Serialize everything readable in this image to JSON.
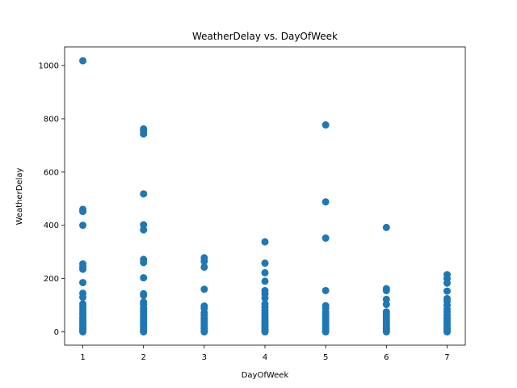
{
  "chart_data": {
    "type": "scatter",
    "title": "WeatherDelay vs. DayOfWeek",
    "xlabel": "DayOfWeek",
    "ylabel": "WeatherDelay",
    "xlim": [
      0.7,
      7.3
    ],
    "ylim": [
      -50,
      1070
    ],
    "xticks": [
      1,
      2,
      3,
      4,
      5,
      6,
      7
    ],
    "yticks": [
      0,
      200,
      400,
      600,
      800,
      1000
    ],
    "grid": false,
    "legend": "none",
    "marker_color": "#1f77b4",
    "series": [
      {
        "points": [
          {
            "x": 1,
            "y": 1018
          },
          {
            "x": 1,
            "y": 460
          },
          {
            "x": 1,
            "y": 452
          },
          {
            "x": 1,
            "y": 400
          },
          {
            "x": 1,
            "y": 255
          },
          {
            "x": 1,
            "y": 245
          },
          {
            "x": 1,
            "y": 235
          },
          {
            "x": 1,
            "y": 185
          },
          {
            "x": 1,
            "y": 145
          },
          {
            "x": 1,
            "y": 130
          },
          {
            "x": 1,
            "y": 105
          },
          {
            "x": 1,
            "y": 95
          },
          {
            "x": 1,
            "y": 85
          },
          {
            "x": 1,
            "y": 75
          },
          {
            "x": 1,
            "y": 65
          },
          {
            "x": 1,
            "y": 55
          },
          {
            "x": 1,
            "y": 48
          },
          {
            "x": 1,
            "y": 40
          },
          {
            "x": 1,
            "y": 33
          },
          {
            "x": 1,
            "y": 26
          },
          {
            "x": 1,
            "y": 19
          },
          {
            "x": 1,
            "y": 12
          },
          {
            "x": 1,
            "y": 6
          },
          {
            "x": 1,
            "y": 0
          },
          {
            "x": 2,
            "y": 762
          },
          {
            "x": 2,
            "y": 755
          },
          {
            "x": 2,
            "y": 743
          },
          {
            "x": 2,
            "y": 518
          },
          {
            "x": 2,
            "y": 402
          },
          {
            "x": 2,
            "y": 383
          },
          {
            "x": 2,
            "y": 272
          },
          {
            "x": 2,
            "y": 260
          },
          {
            "x": 2,
            "y": 203
          },
          {
            "x": 2,
            "y": 143
          },
          {
            "x": 2,
            "y": 137
          },
          {
            "x": 2,
            "y": 112
          },
          {
            "x": 2,
            "y": 103
          },
          {
            "x": 2,
            "y": 88
          },
          {
            "x": 2,
            "y": 78
          },
          {
            "x": 2,
            "y": 68
          },
          {
            "x": 2,
            "y": 58
          },
          {
            "x": 2,
            "y": 50
          },
          {
            "x": 2,
            "y": 42
          },
          {
            "x": 2,
            "y": 34
          },
          {
            "x": 2,
            "y": 26
          },
          {
            "x": 2,
            "y": 18
          },
          {
            "x": 2,
            "y": 10
          },
          {
            "x": 2,
            "y": 4
          },
          {
            "x": 2,
            "y": 0
          },
          {
            "x": 3,
            "y": 278
          },
          {
            "x": 3,
            "y": 265
          },
          {
            "x": 3,
            "y": 243
          },
          {
            "x": 3,
            "y": 160
          },
          {
            "x": 3,
            "y": 97
          },
          {
            "x": 3,
            "y": 88
          },
          {
            "x": 3,
            "y": 72
          },
          {
            "x": 3,
            "y": 62
          },
          {
            "x": 3,
            "y": 52
          },
          {
            "x": 3,
            "y": 44
          },
          {
            "x": 3,
            "y": 36
          },
          {
            "x": 3,
            "y": 28
          },
          {
            "x": 3,
            "y": 20
          },
          {
            "x": 3,
            "y": 12
          },
          {
            "x": 3,
            "y": 5
          },
          {
            "x": 3,
            "y": 0
          },
          {
            "x": 4,
            "y": 338
          },
          {
            "x": 4,
            "y": 258
          },
          {
            "x": 4,
            "y": 222
          },
          {
            "x": 4,
            "y": 190
          },
          {
            "x": 4,
            "y": 155
          },
          {
            "x": 4,
            "y": 142
          },
          {
            "x": 4,
            "y": 127
          },
          {
            "x": 4,
            "y": 105
          },
          {
            "x": 4,
            "y": 93
          },
          {
            "x": 4,
            "y": 80
          },
          {
            "x": 4,
            "y": 70
          },
          {
            "x": 4,
            "y": 60
          },
          {
            "x": 4,
            "y": 50
          },
          {
            "x": 4,
            "y": 42
          },
          {
            "x": 4,
            "y": 34
          },
          {
            "x": 4,
            "y": 26
          },
          {
            "x": 4,
            "y": 18
          },
          {
            "x": 4,
            "y": 10
          },
          {
            "x": 4,
            "y": 4
          },
          {
            "x": 4,
            "y": 0
          },
          {
            "x": 5,
            "y": 777
          },
          {
            "x": 5,
            "y": 488
          },
          {
            "x": 5,
            "y": 352
          },
          {
            "x": 5,
            "y": 155
          },
          {
            "x": 5,
            "y": 98
          },
          {
            "x": 5,
            "y": 88
          },
          {
            "x": 5,
            "y": 74
          },
          {
            "x": 5,
            "y": 64
          },
          {
            "x": 5,
            "y": 54
          },
          {
            "x": 5,
            "y": 45
          },
          {
            "x": 5,
            "y": 37
          },
          {
            "x": 5,
            "y": 28
          },
          {
            "x": 5,
            "y": 20
          },
          {
            "x": 5,
            "y": 12
          },
          {
            "x": 5,
            "y": 5
          },
          {
            "x": 5,
            "y": 0
          },
          {
            "x": 6,
            "y": 392
          },
          {
            "x": 6,
            "y": 162
          },
          {
            "x": 6,
            "y": 155
          },
          {
            "x": 6,
            "y": 122
          },
          {
            "x": 6,
            "y": 103
          },
          {
            "x": 6,
            "y": 75
          },
          {
            "x": 6,
            "y": 65
          },
          {
            "x": 6,
            "y": 55
          },
          {
            "x": 6,
            "y": 45
          },
          {
            "x": 6,
            "y": 37
          },
          {
            "x": 6,
            "y": 29
          },
          {
            "x": 6,
            "y": 21
          },
          {
            "x": 6,
            "y": 13
          },
          {
            "x": 6,
            "y": 6
          },
          {
            "x": 6,
            "y": 0
          },
          {
            "x": 7,
            "y": 215
          },
          {
            "x": 7,
            "y": 200
          },
          {
            "x": 7,
            "y": 183
          },
          {
            "x": 7,
            "y": 153
          },
          {
            "x": 7,
            "y": 125
          },
          {
            "x": 7,
            "y": 115
          },
          {
            "x": 7,
            "y": 100
          },
          {
            "x": 7,
            "y": 85
          },
          {
            "x": 7,
            "y": 75
          },
          {
            "x": 7,
            "y": 62
          },
          {
            "x": 7,
            "y": 52
          },
          {
            "x": 7,
            "y": 44
          },
          {
            "x": 7,
            "y": 36
          },
          {
            "x": 7,
            "y": 28
          },
          {
            "x": 7,
            "y": 20
          },
          {
            "x": 7,
            "y": 12
          },
          {
            "x": 7,
            "y": 5
          },
          {
            "x": 7,
            "y": 0
          }
        ]
      }
    ]
  }
}
